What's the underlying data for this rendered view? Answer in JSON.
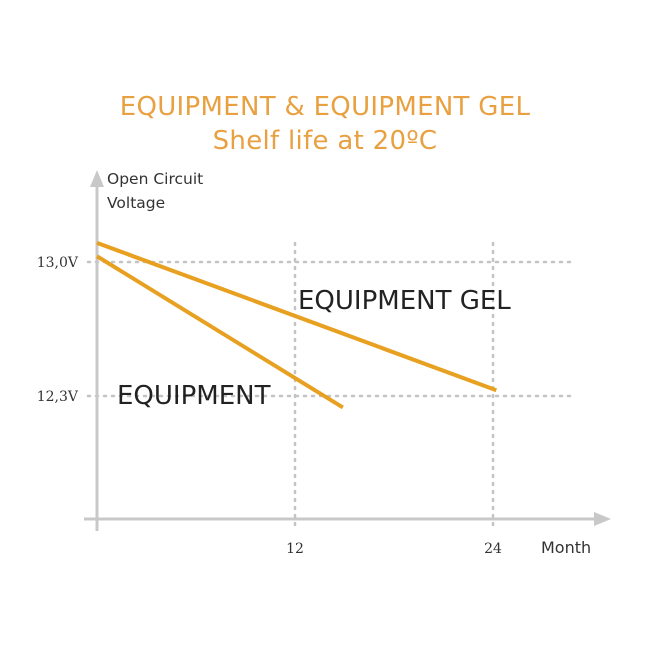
{
  "chart_data": {
    "type": "line",
    "title": "EQUIPMENT & EQUIPMENT GEL",
    "subtitle": "Shelf life at 20ºC",
    "ylabel_lines": [
      "Open Circuit",
      "Voltage"
    ],
    "xlabel": "Month",
    "x_ticks": [
      {
        "value": 12,
        "label": "12"
      },
      {
        "value": 24,
        "label": "24"
      }
    ],
    "y_ticks": [
      {
        "value": 13.0,
        "label": "13,0V"
      },
      {
        "value": 12.3,
        "label": "12,3V"
      }
    ],
    "grid": "dotted at tick values",
    "series": [
      {
        "name": "EQUIPMENT GEL",
        "color": "#e8a020",
        "x": [
          0,
          24.2
        ],
        "y": [
          13.1,
          12.33
        ]
      },
      {
        "name": "EQUIPMENT",
        "color": "#e8a020",
        "x": [
          0,
          14.9
        ],
        "y": [
          13.03,
          12.24
        ]
      }
    ]
  }
}
